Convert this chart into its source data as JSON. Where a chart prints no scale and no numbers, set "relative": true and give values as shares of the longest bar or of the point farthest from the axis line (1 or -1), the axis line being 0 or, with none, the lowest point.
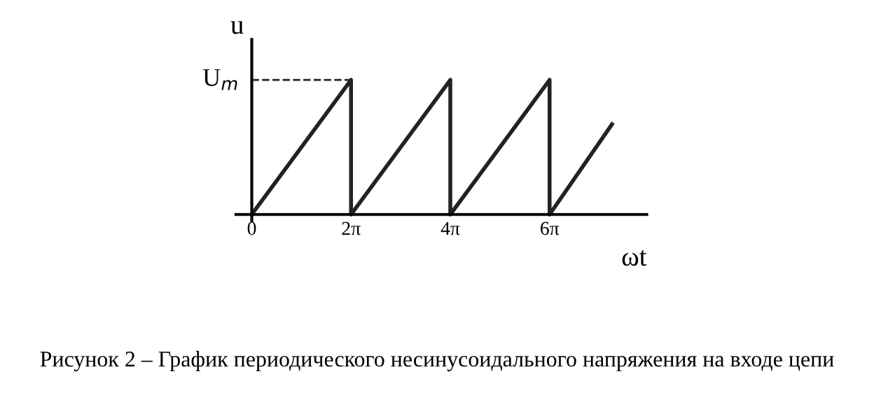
{
  "chart_data": {
    "type": "line",
    "xlabel": "ωt",
    "ylabel": "u",
    "relative": true,
    "series": [
      {
        "color": "#222222",
        "x": [
          0,
          6.2832,
          6.2832,
          12.566,
          12.566,
          18.85,
          18.85,
          22.8
        ],
        "values": [
          0,
          1,
          0,
          1,
          0,
          1,
          0,
          0.67
        ]
      },
      {
        "color": "#222222",
        "line_style": "dashed",
        "x": [
          0,
          6.2832
        ],
        "values": [
          1,
          1
        ]
      }
    ],
    "xlim": [
      -1,
      25
    ],
    "xticks": [
      {
        "value": 0,
        "label": "0"
      },
      {
        "value": 6.2832,
        "label": "2π"
      },
      {
        "value": 12.566,
        "label": "4π"
      },
      {
        "value": 18.85,
        "label": "6π"
      }
    ],
    "annotations": [
      {
        "text": "U$_{m}$",
        "x": 0,
        "y": 1
      },
      "Рисунок 2 – График периодического несинусоидального напряжения на входе цепи"
    ]
  }
}
